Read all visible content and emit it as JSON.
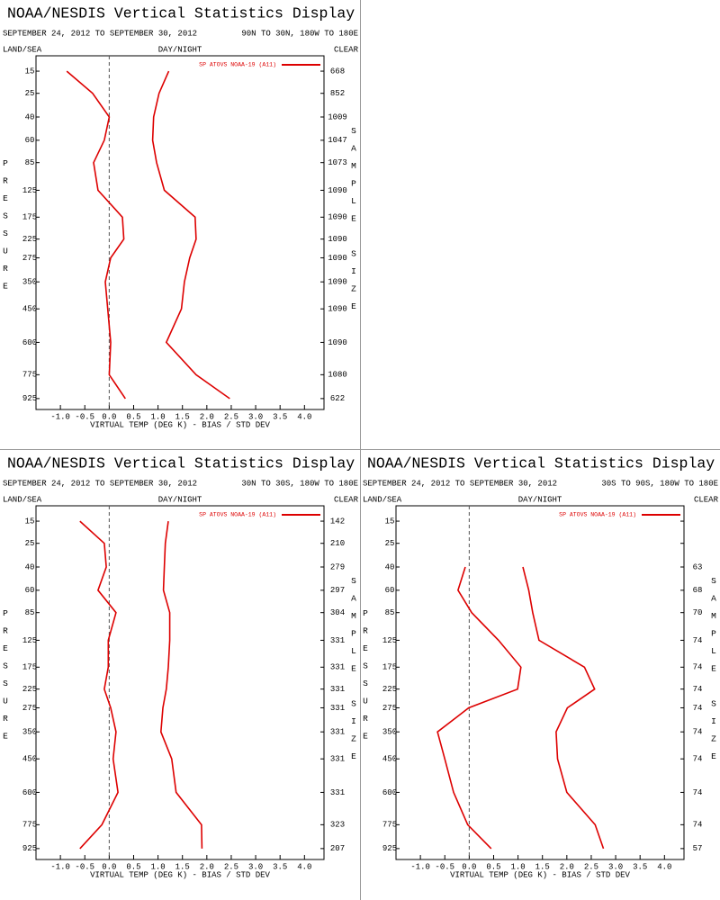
{
  "chart_data": [
    {
      "type": "line",
      "title": "NOAA/NESDIS Vertical Statistics Display",
      "subtitle": "SEPTEMBER 24, 2012 TO SEPTEMBER 30, 2012",
      "region": "90N TO 30N, 180W TO 180E",
      "land_sea": "LAND/SEA",
      "day_night": "DAY/NIGHT",
      "clear": "CLEAR",
      "xlabel": "VIRTUAL TEMP (DEG K) - BIAS / STD DEV",
      "ylabel": "PRESSURE",
      "y2label": "SAMPLE SIZE",
      "xlim": [
        -1.5,
        4.4
      ],
      "xticks": [
        {
          "value": -1,
          "label": "-1.0"
        },
        -0.5,
        {
          "value": 0,
          "label": "0.0"
        },
        0.5,
        {
          "value": 1,
          "label": "1.0"
        },
        1.5,
        {
          "value": 2,
          "label": "2.0"
        },
        2.5,
        {
          "value": 3,
          "label": "3.0"
        },
        3.5,
        {
          "value": 4,
          "label": "4.0"
        }
      ],
      "ylim": [
        10,
        1000
      ],
      "y_power": 0.3,
      "y_reversed": true,
      "yticks": [
        15,
        25,
        40,
        60,
        85,
        125,
        175,
        225,
        275,
        350,
        450,
        600,
        775,
        925
      ],
      "y": [
        15,
        25,
        40,
        60,
        85,
        125,
        175,
        225,
        275,
        350,
        450,
        600,
        775,
        925
      ],
      "reference_x": 0,
      "sample_size": [
        668,
        852,
        1009,
        1047,
        1073,
        1090,
        1090,
        1090,
        1090,
        1090,
        1090,
        1090,
        1080,
        622
      ],
      "series": [
        {
          "name": "SP ATOVS NOAA-19 (A11)",
          "color": "#dd0000",
          "bias": [
            -0.87,
            -0.34,
            0.0,
            -0.1,
            -0.32,
            -0.23,
            0.27,
            0.3,
            0.03,
            -0.08,
            -0.03,
            0.03,
            0.0,
            0.33
          ],
          "std_dev": [
            1.22,
            1.02,
            0.91,
            0.89,
            0.97,
            1.13,
            1.76,
            1.78,
            1.65,
            1.54,
            1.48,
            1.17,
            1.78,
            2.47
          ]
        }
      ]
    },
    {
      "type": "line",
      "title": "NOAA/NESDIS Vertical Statistics Display",
      "subtitle": "SEPTEMBER 24, 2012 TO SEPTEMBER 30, 2012",
      "region": "30N TO 30S, 180W TO 180E",
      "land_sea": "LAND/SEA",
      "day_night": "DAY/NIGHT",
      "clear": "CLEAR",
      "xlabel": "VIRTUAL TEMP (DEG K) - BIAS / STD DEV",
      "ylabel": "PRESSURE",
      "y2label": "SAMPLE SIZE",
      "xlim": [
        -1.5,
        4.4
      ],
      "xticks": [
        {
          "value": -1,
          "label": "-1.0"
        },
        -0.5,
        {
          "value": 0,
          "label": "0.0"
        },
        0.5,
        {
          "value": 1,
          "label": "1.0"
        },
        1.5,
        {
          "value": 2,
          "label": "2.0"
        },
        2.5,
        {
          "value": 3,
          "label": "3.0"
        },
        3.5,
        {
          "value": 4,
          "label": "4.0"
        }
      ],
      "ylim": [
        10,
        1000
      ],
      "y_power": 0.3,
      "y_reversed": true,
      "yticks": [
        15,
        25,
        40,
        60,
        85,
        125,
        175,
        225,
        275,
        350,
        450,
        600,
        775,
        925
      ],
      "y": [
        15,
        25,
        40,
        60,
        85,
        125,
        175,
        225,
        275,
        350,
        450,
        600,
        775,
        925
      ],
      "reference_x": 0,
      "sample_size": [
        142,
        210,
        279,
        297,
        304,
        331,
        331,
        331,
        331,
        331,
        331,
        331,
        323,
        207
      ],
      "series": [
        {
          "name": "SP ATOVS NOAA-19 (A11)",
          "color": "#dd0000",
          "bias": [
            -0.6,
            -0.1,
            -0.06,
            -0.23,
            0.14,
            -0.02,
            -0.02,
            -0.1,
            0.03,
            0.14,
            0.08,
            0.18,
            -0.15,
            -0.6
          ],
          "std_dev": [
            1.21,
            1.15,
            1.13,
            1.11,
            1.24,
            1.24,
            1.21,
            1.17,
            1.1,
            1.06,
            1.28,
            1.37,
            1.89,
            1.9
          ]
        }
      ]
    },
    {
      "type": "line",
      "title": "NOAA/NESDIS Vertical Statistics Display",
      "subtitle": "SEPTEMBER 24, 2012 TO SEPTEMBER 30, 2012",
      "region": "30S TO 90S, 180W TO 180E",
      "land_sea": "LAND/SEA",
      "day_night": "DAY/NIGHT",
      "clear": "CLEAR",
      "xlabel": "VIRTUAL TEMP (DEG K) - BIAS / STD DEV",
      "ylabel": "PRESSURE",
      "y2label": "SAMPLE SIZE",
      "xlim": [
        -1.5,
        4.4
      ],
      "xticks": [
        {
          "value": -1,
          "label": "-1.0"
        },
        -0.5,
        {
          "value": 0,
          "label": "0.0"
        },
        0.5,
        {
          "value": 1,
          "label": "1.0"
        },
        1.5,
        {
          "value": 2,
          "label": "2.0"
        },
        2.5,
        {
          "value": 3,
          "label": "3.0"
        },
        3.5,
        {
          "value": 4,
          "label": "4.0"
        }
      ],
      "ylim": [
        10,
        1000
      ],
      "y_power": 0.3,
      "y_reversed": true,
      "yticks": [
        15,
        25,
        40,
        60,
        85,
        125,
        175,
        225,
        275,
        350,
        450,
        600,
        775,
        925
      ],
      "y": [
        15,
        25,
        40,
        60,
        85,
        125,
        175,
        225,
        275,
        350,
        450,
        600,
        775,
        925
      ],
      "reference_x": 0,
      "sample_size": [
        null,
        null,
        63,
        68,
        70,
        74,
        74,
        74,
        74,
        74,
        74,
        74,
        74,
        57
      ],
      "series": [
        {
          "name": "SP ATOVS NOAA-19 (A11)",
          "color": "#dd0000",
          "bias": [
            null,
            null,
            -0.08,
            -0.23,
            0.05,
            0.6,
            1.06,
            0.99,
            -0.01,
            -0.65,
            -0.5,
            -0.32,
            -0.03,
            0.45
          ],
          "std_dev": [
            null,
            null,
            1.1,
            1.22,
            1.3,
            1.43,
            2.36,
            2.57,
            2.01,
            1.78,
            1.81,
            2.0,
            2.58,
            2.75
          ]
        }
      ]
    }
  ]
}
